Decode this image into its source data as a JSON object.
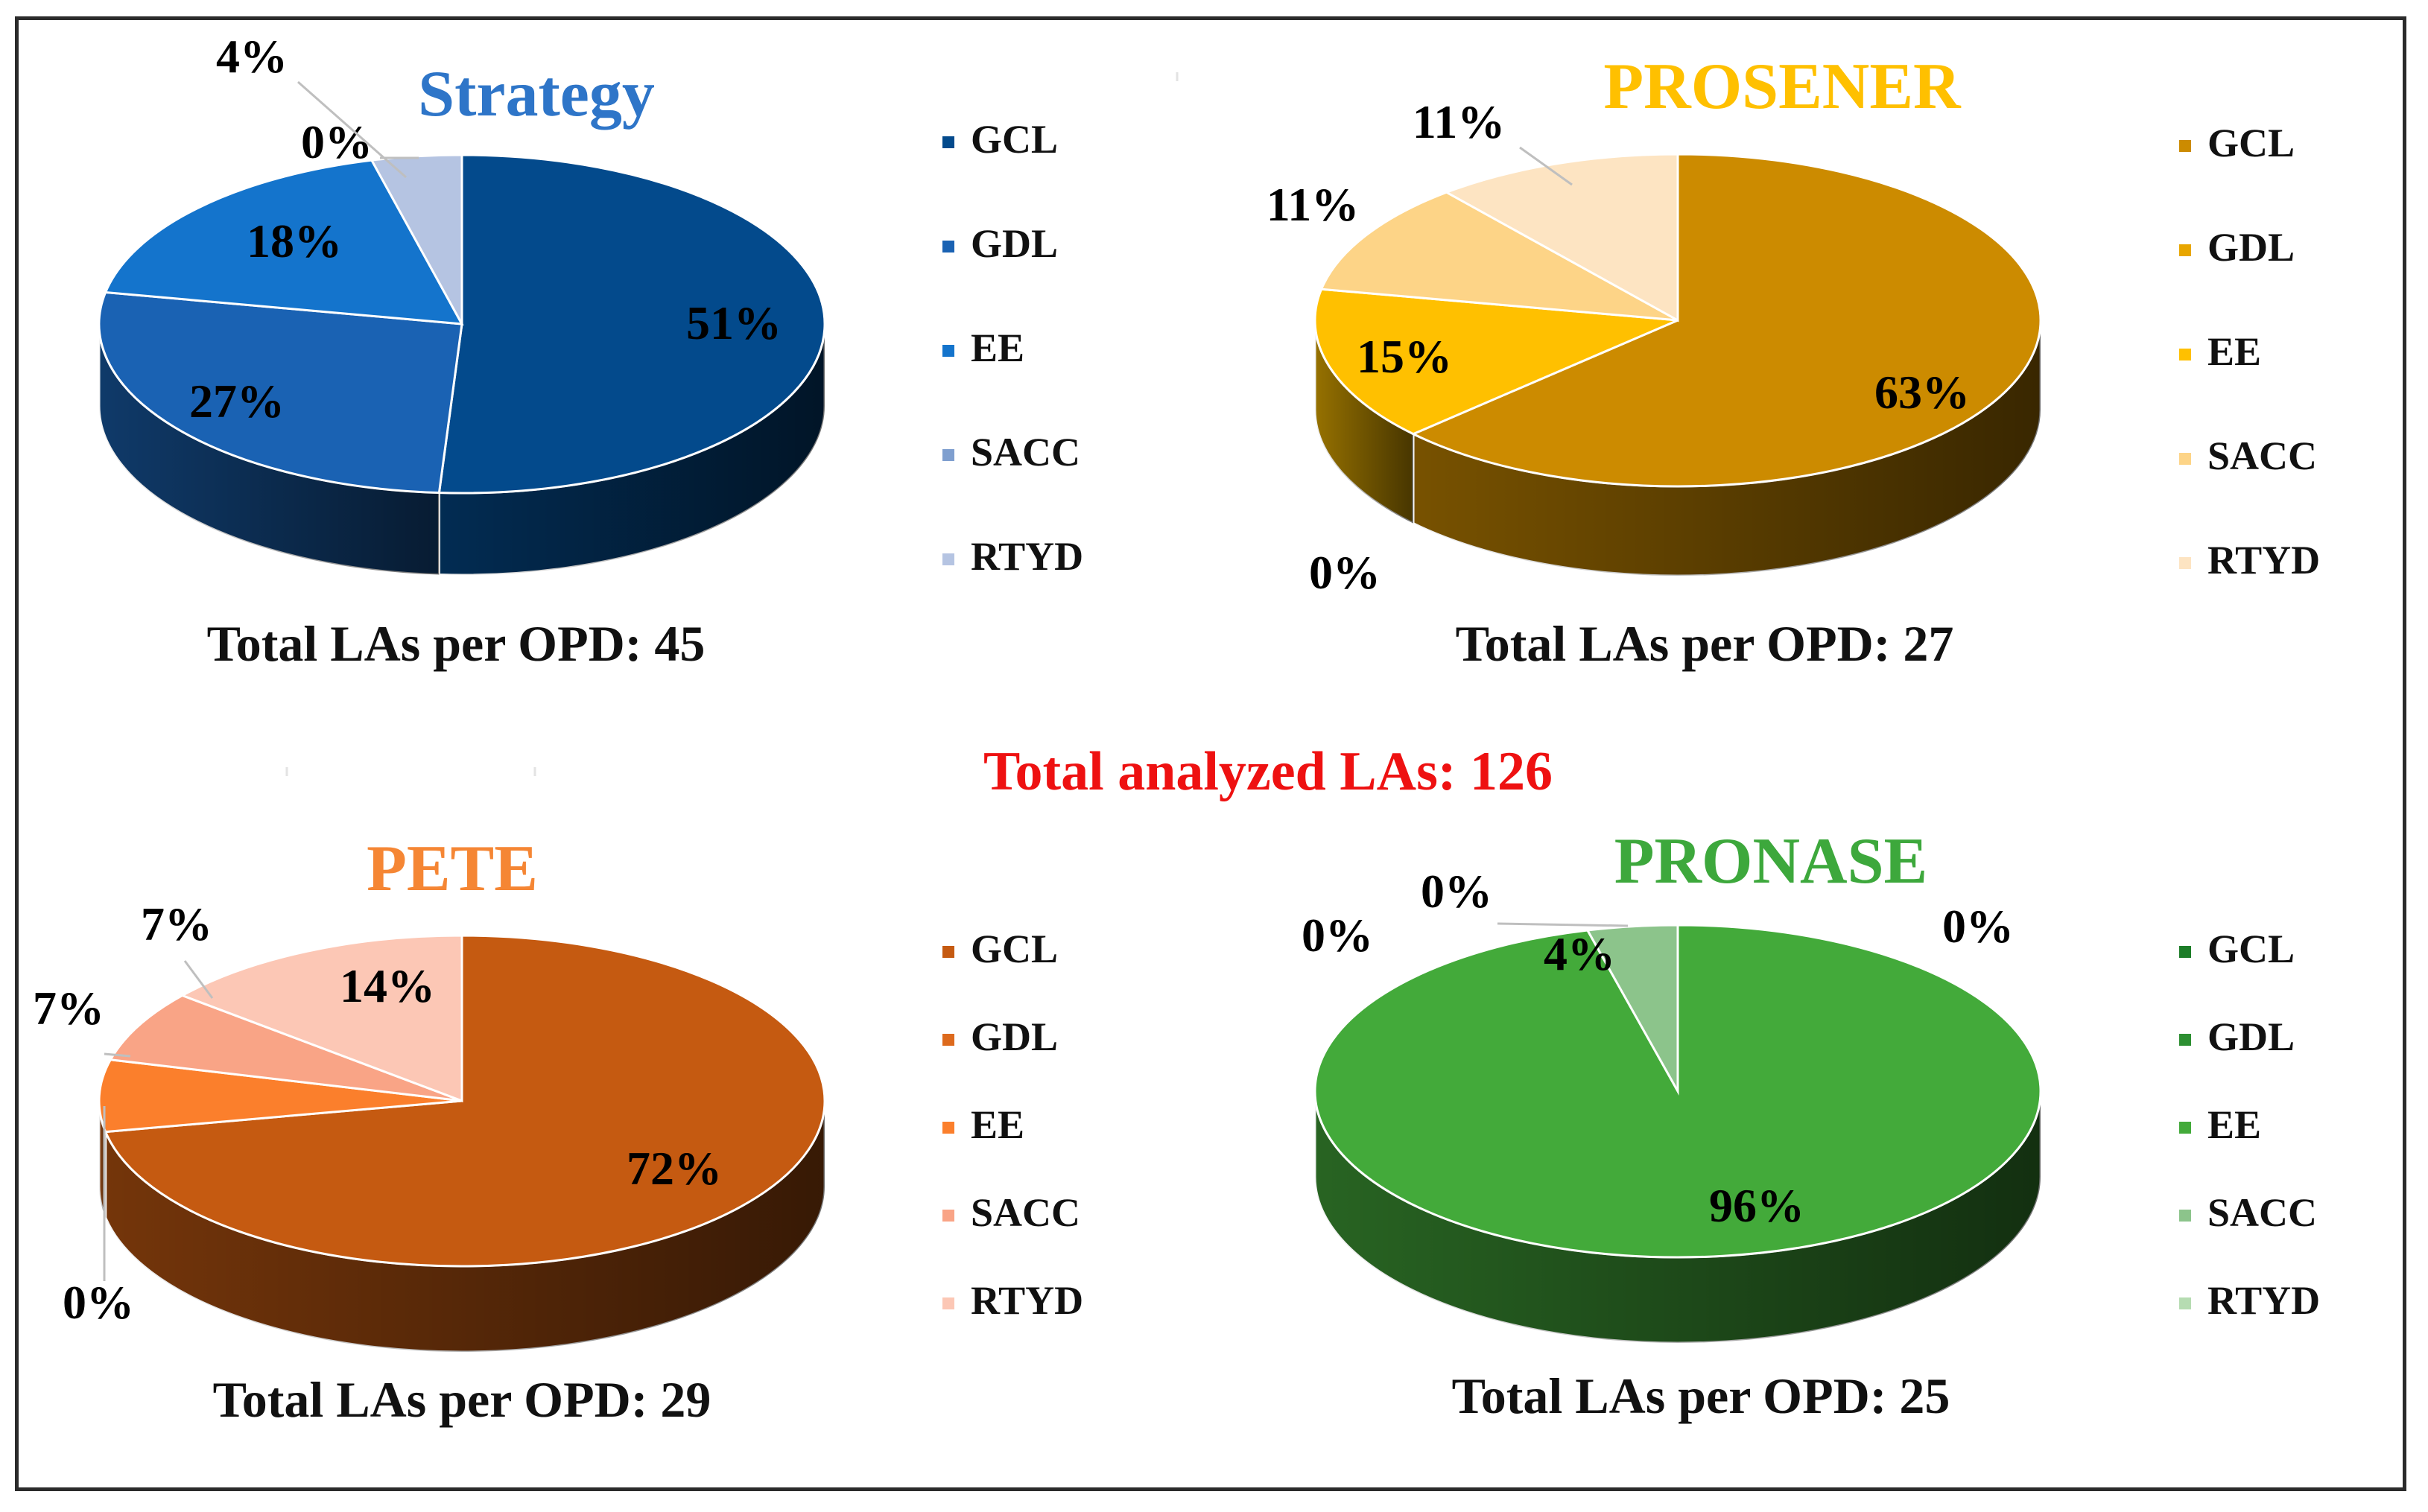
{
  "grand_total": "Total analyzed LAs: 126",
  "legend_labels": [
    "GCL",
    "GDL",
    "EE",
    "SACC",
    "RTYD"
  ],
  "chart_data": [
    {
      "type": "pie",
      "title": "Strategy",
      "title_color": "#2e75c8",
      "categories": [
        "GCL",
        "GDL",
        "EE",
        "SACC",
        "RTYD"
      ],
      "values": [
        51,
        27,
        18,
        0,
        4
      ],
      "labels": [
        "51%",
        "27%",
        "18%",
        "0%",
        "4%"
      ],
      "colors": [
        "#034a8c",
        "#1a62b3",
        "#1474cc",
        "#7f9fcf",
        "#b5c4e2"
      ],
      "total_label": "Total LAs per OPD: 45"
    },
    {
      "type": "pie",
      "title": "PROSENER",
      "title_color": "#ffc000",
      "categories": [
        "GCL",
        "GDL",
        "EE",
        "SACC",
        "RTYD"
      ],
      "values": [
        63,
        0,
        15,
        11,
        11
      ],
      "labels": [
        "63%",
        "0%",
        "15%",
        "11%",
        "11%"
      ],
      "colors": [
        "#cc8b00",
        "#e8a600",
        "#ffc000",
        "#fdd487",
        "#fde4c2"
      ],
      "total_label": "Total LAs per OPD: 27"
    },
    {
      "type": "pie",
      "title": "PETE",
      "title_color": "#f58634",
      "categories": [
        "GCL",
        "GDL",
        "EE",
        "SACC",
        "RTYD"
      ],
      "values": [
        72,
        0,
        7,
        7,
        14
      ],
      "labels": [
        "72%",
        "0%",
        "7%",
        "7%",
        "14%"
      ],
      "colors": [
        "#c55a11",
        "#dd6a1d",
        "#fb7f2c",
        "#f9a486",
        "#fcc7b5"
      ],
      "total_label": "Total LAs per OPD: 29"
    },
    {
      "type": "pie",
      "title": "PRONASE",
      "title_color": "#3da83c",
      "categories": [
        "GCL",
        "GDL",
        "EE",
        "SACC",
        "RTYD"
      ],
      "values": [
        0,
        0,
        96,
        4,
        0
      ],
      "labels": [
        "0%",
        "0%",
        "96%",
        "4%",
        "0%"
      ],
      "colors": [
        "#1d7d29",
        "#2d8f32",
        "#43aa3a",
        "#8cc48b",
        "#b6dcb2"
      ],
      "total_label": "Total LAs per OPD: 25"
    }
  ]
}
